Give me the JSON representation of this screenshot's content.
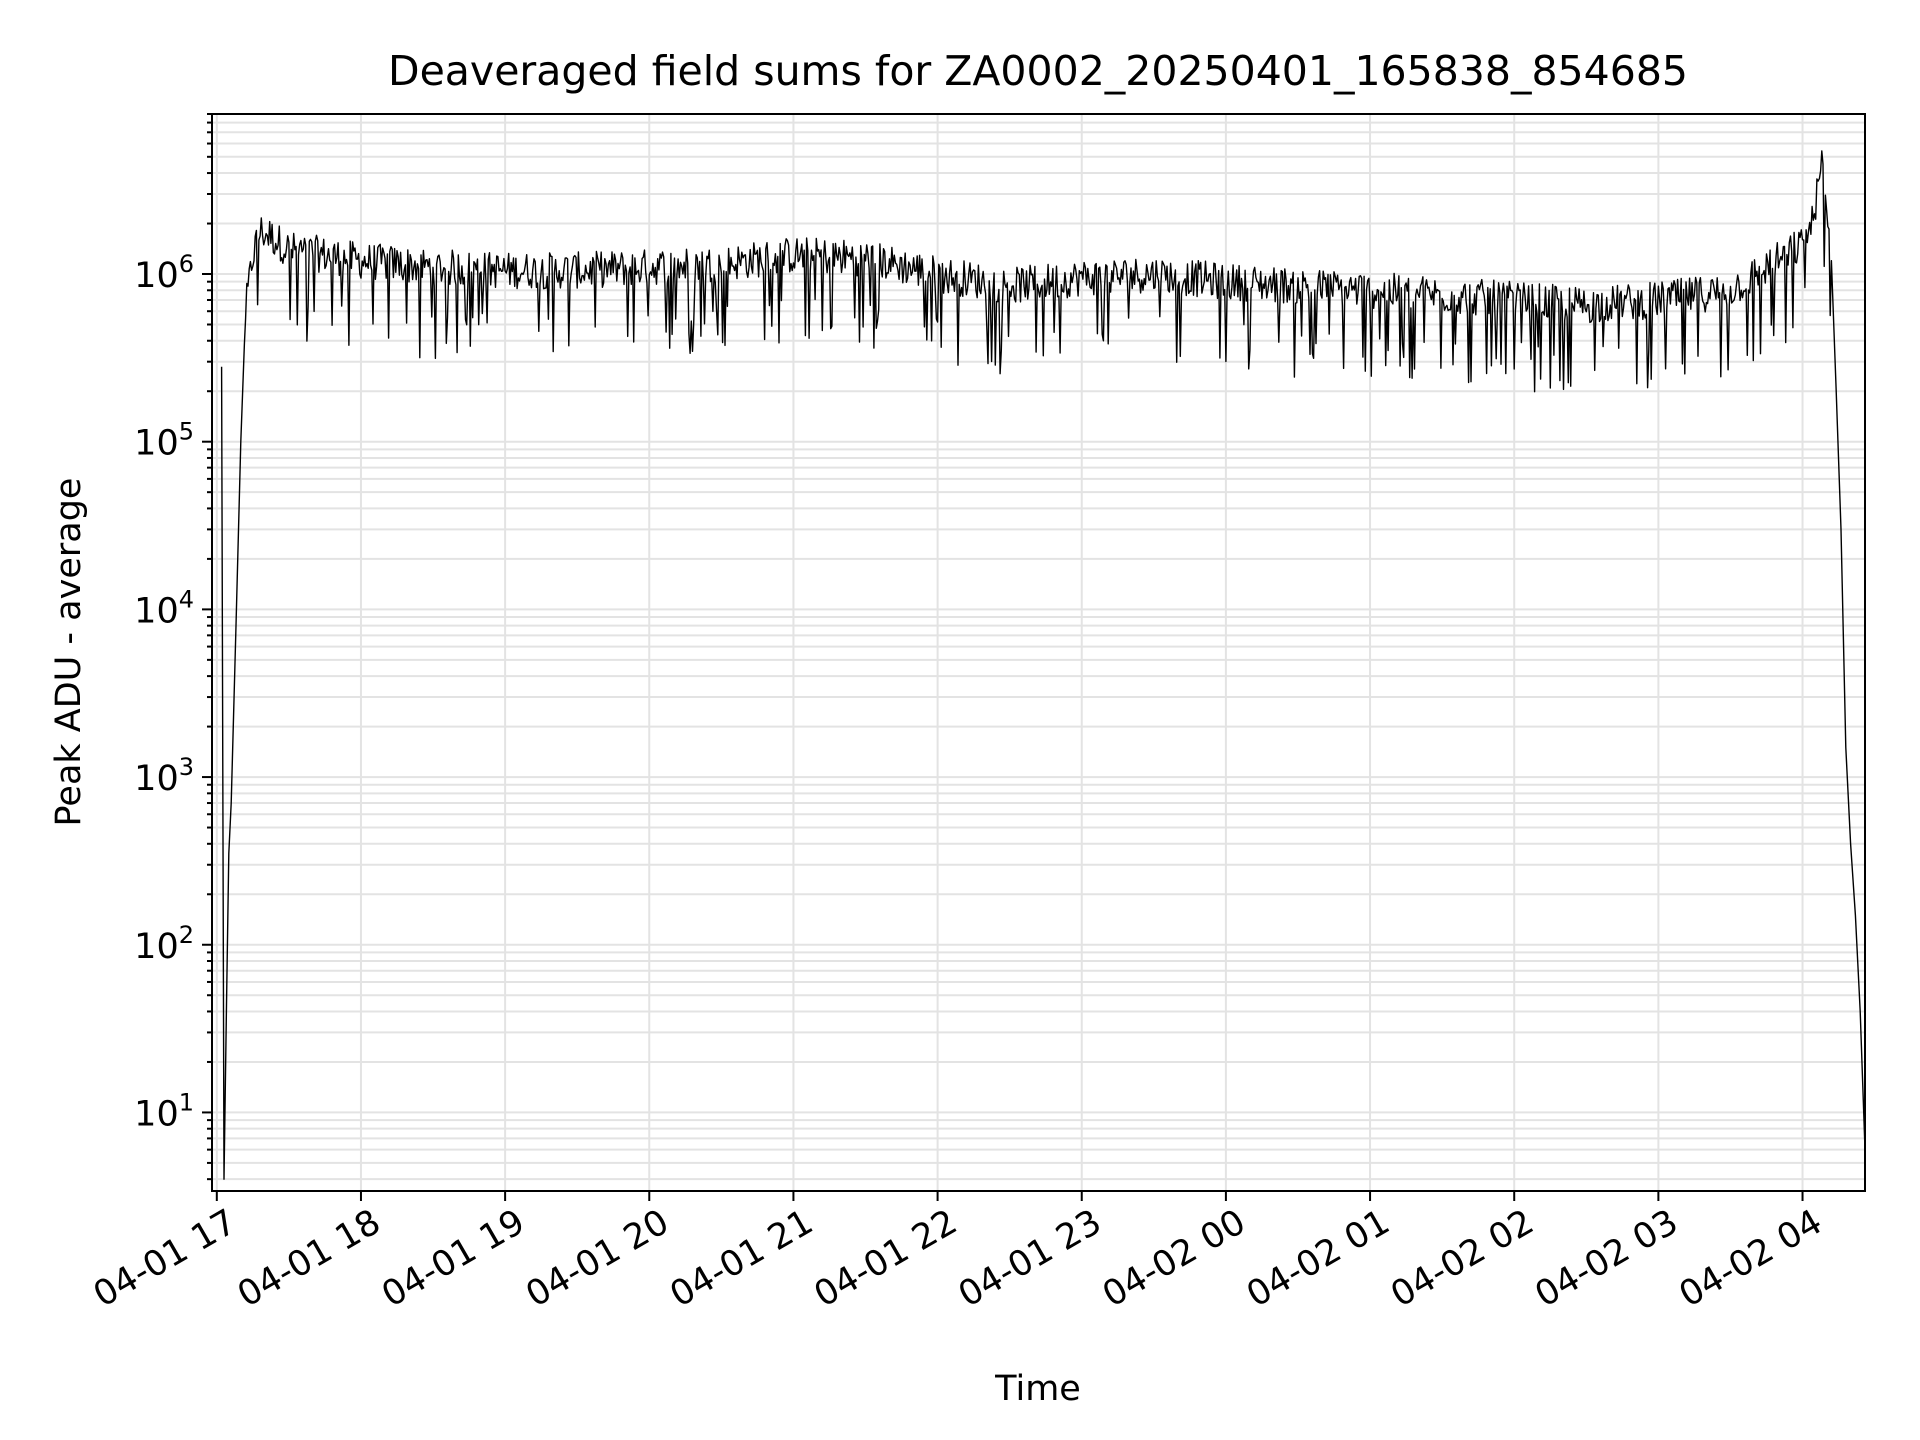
{
  "chart_data": {
    "type": "line",
    "title": "Deaveraged field sums for ZA0002_20250401_165838_854685",
    "xlabel": "Time",
    "ylabel": "Peak ADU - average",
    "x_tick_labels": [
      "04-01 17",
      "04-01 18",
      "04-01 19",
      "04-01 20",
      "04-01 21",
      "04-01 22",
      "04-01 23",
      "04-02 00",
      "04-02 01",
      "04-02 02",
      "04-02 03",
      "04-02 04"
    ],
    "y_scale": "log",
    "y_tick_base": "10",
    "y_tick_exponents": [
      "1",
      "2",
      "3",
      "4",
      "5",
      "6"
    ],
    "xlim": [
      "2025-04-01 16:58",
      "2025-04-02 04:26"
    ],
    "ylim": [
      3.4,
      9000000
    ],
    "grid": true,
    "line_color": "#000000",
    "grid_color": "#e3e3e3",
    "series": [
      {
        "x": [
          "2025-04-01 17:02",
          "2025-04-01 17:03",
          "2025-04-01 17:04",
          "2025-04-01 17:05",
          "2025-04-01 17:06",
          "2025-04-01 17:08",
          "2025-04-01 17:10",
          "2025-04-01 17:12",
          "2025-04-01 17:15",
          "2025-04-01 17:18",
          "2025-04-01 17:22",
          "2025-04-01 17:30",
          "2025-04-01 17:45",
          "2025-04-01 18:00",
          "2025-04-01 18:30",
          "2025-04-01 19:00",
          "2025-04-01 19:30",
          "2025-04-01 20:00",
          "2025-04-01 20:30",
          "2025-04-01 21:00",
          "2025-04-01 21:30",
          "2025-04-01 22:00",
          "2025-04-01 22:30",
          "2025-04-01 23:00",
          "2025-04-01 23:30",
          "2025-04-02 00:00",
          "2025-04-02 00:30",
          "2025-04-02 01:00",
          "2025-04-02 01:30",
          "2025-04-02 02:00",
          "2025-04-02 02:30",
          "2025-04-02 03:00",
          "2025-04-02 03:15",
          "2025-04-02 03:30",
          "2025-04-02 03:45",
          "2025-04-02 04:00",
          "2025-04-02 04:04",
          "2025-04-02 04:08",
          "2025-04-02 04:12",
          "2025-04-02 04:14",
          "2025-04-02 04:16",
          "2025-04-02 04:18",
          "2025-04-02 04:20",
          "2025-04-02 04:22",
          "2025-04-02 04:24",
          "2025-04-02 04:26"
        ],
        "y": [
          280000,
          4,
          40,
          350,
          700,
          8000,
          100000,
          600000,
          1300000,
          1800000,
          1700000,
          1400000,
          1300000,
          1200000,
          1100000,
          1050000,
          1050000,
          1100000,
          1150000,
          1300000,
          1250000,
          1000000,
          850000,
          950000,
          1000000,
          900000,
          850000,
          800000,
          750000,
          700000,
          650000,
          700000,
          750000,
          800000,
          1100000,
          1500000,
          2000000,
          4500000,
          1200000,
          200000,
          30000,
          1500,
          400,
          150,
          40,
          6
        ]
      }
    ]
  }
}
